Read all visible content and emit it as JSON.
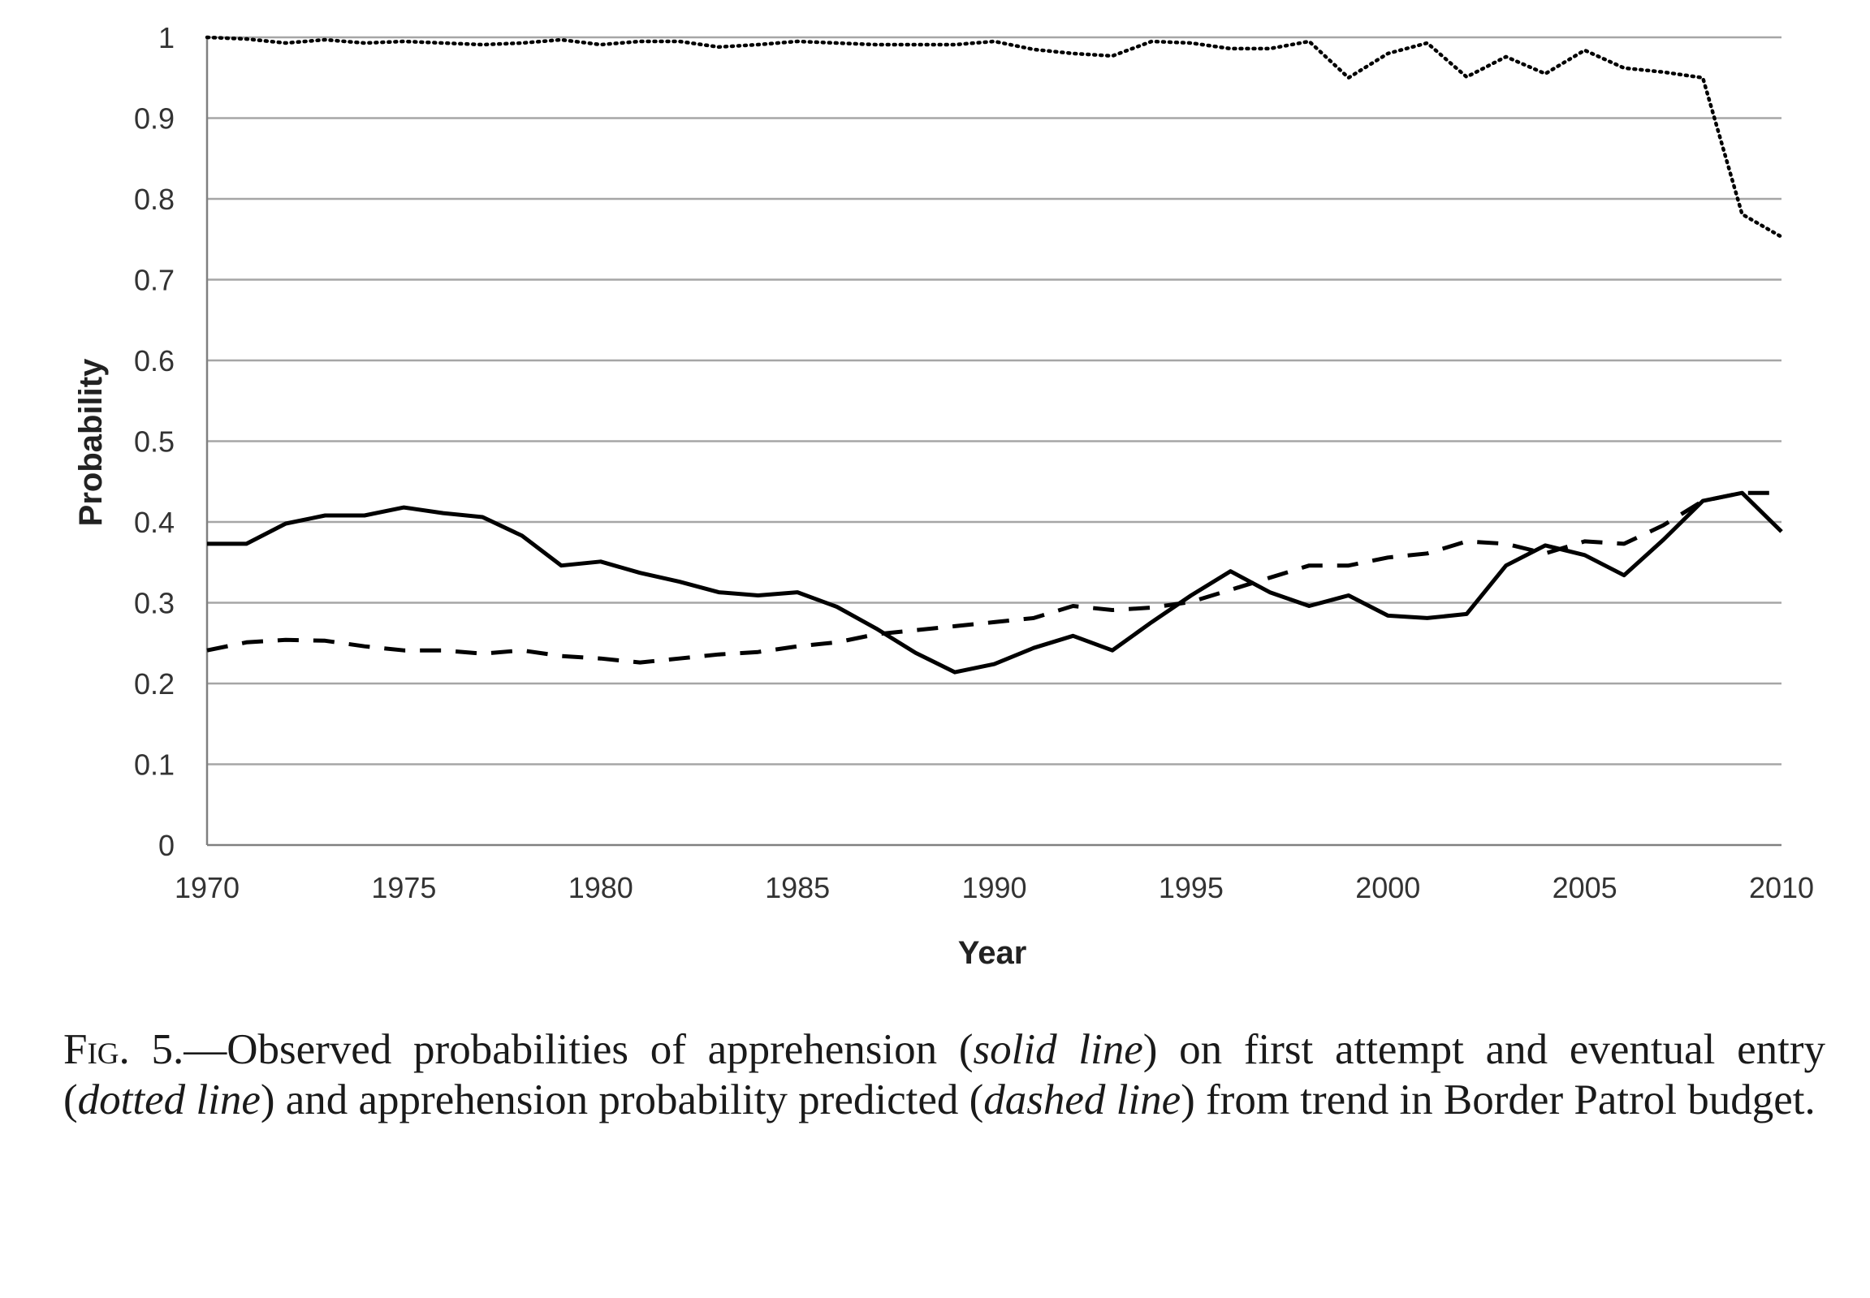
{
  "caption": {
    "fig_label": "Fig. 5.",
    "dash": "—",
    "t1": "Observed probabilities of apprehension (",
    "solid": "solid line",
    "t2": ") on first attempt and eventual entry (",
    "dotted": "dotted line",
    "t3": ") and apprehension probability predicted (",
    "dashed": "dashed line",
    "t4": ") from trend in Border Patrol budget."
  },
  "chart_data": {
    "type": "line",
    "xlabel": "Year",
    "ylabel": "Probability",
    "xlim": [
      1970,
      2010
    ],
    "ylim": [
      0,
      1
    ],
    "x_ticks": [
      "1970",
      "1975",
      "1980",
      "1985",
      "1990",
      "1995",
      "2000",
      "2005",
      "2010"
    ],
    "y_ticks": [
      "0",
      "0.1",
      "0.2",
      "0.3",
      "0.4",
      "0.5",
      "0.6",
      "0.7",
      "0.8",
      "0.9",
      "1"
    ],
    "grid": "horizontal",
    "colors": {
      "line": "#000000",
      "grid": "#a6a6a6",
      "axis": "#808080"
    },
    "x": [
      1970,
      1971,
      1972,
      1973,
      1974,
      1975,
      1976,
      1977,
      1978,
      1979,
      1980,
      1981,
      1982,
      1983,
      1984,
      1985,
      1986,
      1987,
      1988,
      1989,
      1990,
      1991,
      1992,
      1993,
      1994,
      1995,
      1996,
      1997,
      1998,
      1999,
      2000,
      2001,
      2002,
      2003,
      2004,
      2005,
      2006,
      2007,
      2008,
      2009,
      2010
    ],
    "series": [
      {
        "style": "solid",
        "values": [
          0.373,
          0.373,
          0.398,
          0.408,
          0.408,
          0.418,
          0.411,
          0.406,
          0.383,
          0.346,
          0.351,
          0.337,
          0.326,
          0.313,
          0.309,
          0.313,
          0.295,
          0.268,
          0.238,
          0.214,
          0.224,
          0.244,
          0.259,
          0.241,
          0.276,
          0.309,
          0.339,
          0.313,
          0.296,
          0.309,
          0.284,
          0.281,
          0.286,
          0.346,
          0.371,
          0.359,
          0.334,
          0.378,
          0.426,
          0.436,
          0.388
        ]
      },
      {
        "style": "dotted",
        "values": [
          1.0,
          0.998,
          0.993,
          0.997,
          0.993,
          0.995,
          0.993,
          0.991,
          0.993,
          0.997,
          0.991,
          0.995,
          0.995,
          0.988,
          0.991,
          0.995,
          0.993,
          0.991,
          0.991,
          0.991,
          0.995,
          0.985,
          0.98,
          0.977,
          0.995,
          0.993,
          0.986,
          0.986,
          0.995,
          0.95,
          0.98,
          0.993,
          0.951,
          0.976,
          0.955,
          0.984,
          0.962,
          0.957,
          0.95,
          0.781,
          0.753
        ]
      },
      {
        "style": "dashed",
        "values": [
          0.241,
          0.251,
          0.254,
          0.253,
          0.246,
          0.241,
          0.241,
          0.237,
          0.241,
          0.234,
          0.231,
          0.226,
          0.231,
          0.236,
          0.239,
          0.246,
          0.251,
          0.261,
          0.266,
          0.271,
          0.276,
          0.281,
          0.296,
          0.291,
          0.294,
          0.301,
          0.316,
          0.331,
          0.346,
          0.346,
          0.356,
          0.361,
          0.376,
          0.373,
          0.361,
          0.376,
          0.373,
          0.396,
          0.426,
          0.436,
          0.436
        ]
      }
    ]
  }
}
